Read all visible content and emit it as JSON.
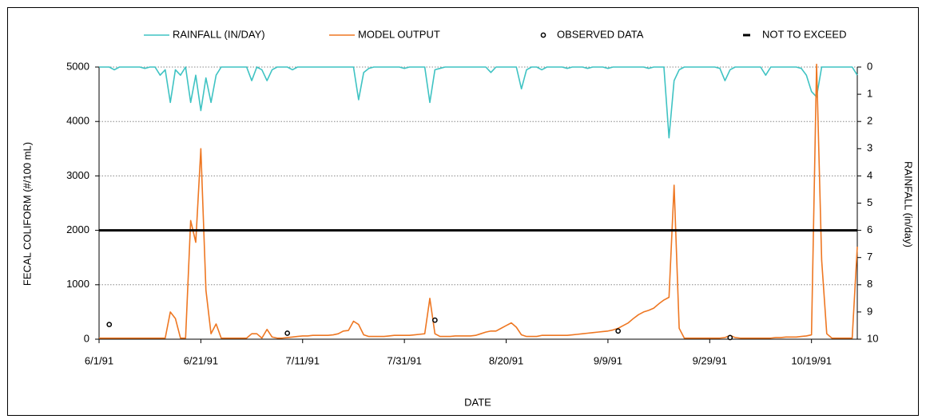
{
  "chart_data": {
    "type": "line",
    "xlabel": "DATE",
    "ylabel": "FECAL COLIFORM (#/100 mL)",
    "y2label": "RAINFALL (in/day)",
    "x": [
      "6/1/91",
      "6/2/91",
      "6/3/91",
      "6/4/91",
      "6/5/91",
      "6/6/91",
      "6/7/91",
      "6/8/91",
      "6/9/91",
      "6/10/91",
      "6/11/91",
      "6/12/91",
      "6/13/91",
      "6/14/91",
      "6/15/91",
      "6/16/91",
      "6/17/91",
      "6/18/91",
      "6/19/91",
      "6/20/91",
      "6/21/91",
      "6/22/91",
      "6/23/91",
      "6/24/91",
      "6/25/91",
      "6/26/91",
      "6/27/91",
      "6/28/91",
      "6/29/91",
      "6/30/91",
      "7/1/91",
      "7/2/91",
      "7/3/91",
      "7/4/91",
      "7/5/91",
      "7/6/91",
      "7/7/91",
      "7/8/91",
      "7/9/91",
      "7/10/91",
      "7/11/91",
      "7/12/91",
      "7/13/91",
      "7/14/91",
      "7/15/91",
      "7/16/91",
      "7/17/91",
      "7/18/91",
      "7/19/91",
      "7/20/91",
      "7/21/91",
      "7/22/91",
      "7/23/91",
      "7/24/91",
      "7/25/91",
      "7/26/91",
      "7/27/91",
      "7/28/91",
      "7/29/91",
      "7/30/91",
      "7/31/91",
      "8/1/91",
      "8/2/91",
      "8/3/91",
      "8/4/91",
      "8/5/91",
      "8/6/91",
      "8/7/91",
      "8/8/91",
      "8/9/91",
      "8/10/91",
      "8/11/91",
      "8/12/91",
      "8/13/91",
      "8/14/91",
      "8/15/91",
      "8/16/91",
      "8/17/91",
      "8/18/91",
      "8/19/91",
      "8/20/91",
      "8/21/91",
      "8/22/91",
      "8/23/91",
      "8/24/91",
      "8/25/91",
      "8/26/91",
      "8/27/91",
      "8/28/91",
      "8/29/91",
      "8/30/91",
      "8/31/91",
      "9/1/91",
      "9/2/91",
      "9/3/91",
      "9/4/91",
      "9/5/91",
      "9/6/91",
      "9/7/91",
      "9/8/91",
      "9/9/91",
      "9/10/91",
      "9/11/91",
      "9/12/91",
      "9/13/91",
      "9/14/91",
      "9/15/91",
      "9/16/91",
      "9/17/91",
      "9/18/91",
      "9/19/91",
      "9/20/91",
      "9/21/91",
      "9/22/91",
      "9/23/91",
      "9/24/91",
      "9/25/91",
      "9/26/91",
      "9/27/91",
      "9/28/91",
      "9/29/91",
      "9/30/91",
      "10/1/91",
      "10/2/91",
      "10/3/91",
      "10/4/91",
      "10/5/91",
      "10/6/91",
      "10/7/91",
      "10/8/91",
      "10/9/91",
      "10/10/91",
      "10/11/91",
      "10/12/91",
      "10/13/91",
      "10/14/91",
      "10/15/91",
      "10/16/91",
      "10/17/91",
      "10/18/91",
      "10/19/91",
      "10/20/91",
      "10/21/91",
      "10/22/91",
      "10/23/91",
      "10/24/91",
      "10/25/91",
      "10/26/91",
      "10/27/91",
      "10/28/91"
    ],
    "series": [
      {
        "name": "RAINFALL (IN/DAY)",
        "color": "#3fc3c3",
        "kind": "line",
        "axis": "y2",
        "values": [
          0,
          0,
          0,
          0.1,
          0,
          0,
          0,
          0,
          0,
          0.05,
          0,
          0,
          0.3,
          0.1,
          1.3,
          0.1,
          0.3,
          0,
          1.3,
          0.3,
          1.6,
          0.4,
          1.3,
          0.3,
          0,
          0,
          0,
          0,
          0,
          0,
          0.5,
          0,
          0.1,
          0.5,
          0.1,
          0,
          0,
          0,
          0.1,
          0,
          0,
          0,
          0,
          0,
          0,
          0,
          0,
          0,
          0,
          0,
          0,
          1.2,
          0.2,
          0.05,
          0,
          0,
          0,
          0,
          0,
          0,
          0.05,
          0,
          0,
          0,
          0,
          1.3,
          0.1,
          0.05,
          0,
          0,
          0,
          0,
          0,
          0,
          0,
          0,
          0,
          0.2,
          0,
          0,
          0,
          0,
          0,
          0.8,
          0.1,
          0,
          0,
          0.1,
          0,
          0,
          0,
          0,
          0.05,
          0,
          0,
          0,
          0.05,
          0,
          0,
          0,
          0.05,
          0,
          0,
          0,
          0,
          0,
          0,
          0,
          0.05,
          0,
          0,
          0,
          2.6,
          0.5,
          0.1,
          0,
          0,
          0,
          0,
          0,
          0,
          0,
          0.05,
          0.5,
          0.1,
          0,
          0,
          0,
          0,
          0,
          0,
          0.3,
          0,
          0,
          0,
          0,
          0,
          0,
          0.05,
          0.3,
          0.9,
          1.1,
          0,
          0,
          0,
          0,
          0,
          0,
          0,
          0.3
        ]
      },
      {
        "name": "MODEL OUTPUT",
        "color": "#ee7722",
        "kind": "line",
        "values": [
          20,
          20,
          20,
          20,
          20,
          20,
          20,
          20,
          20,
          20,
          20,
          20,
          20,
          20,
          500,
          380,
          20,
          20,
          2180,
          1780,
          3500,
          900,
          100,
          280,
          20,
          20,
          20,
          20,
          20,
          20,
          100,
          100,
          20,
          180,
          40,
          20,
          20,
          30,
          40,
          50,
          60,
          60,
          70,
          70,
          70,
          70,
          80,
          100,
          150,
          160,
          330,
          270,
          80,
          50,
          50,
          50,
          50,
          60,
          70,
          70,
          70,
          70,
          80,
          90,
          100,
          750,
          100,
          50,
          50,
          50,
          60,
          60,
          60,
          60,
          70,
          100,
          130,
          150,
          150,
          200,
          250,
          300,
          220,
          80,
          50,
          50,
          50,
          70,
          70,
          70,
          70,
          70,
          70,
          80,
          90,
          100,
          110,
          120,
          130,
          140,
          150,
          170,
          200,
          250,
          300,
          380,
          450,
          500,
          530,
          570,
          650,
          720,
          770,
          2830,
          200,
          20,
          20,
          20,
          20,
          20,
          20,
          20,
          20,
          30,
          70,
          30,
          20,
          20,
          20,
          20,
          20,
          20,
          20,
          30,
          30,
          40,
          40,
          40,
          50,
          60,
          80,
          5050,
          1450,
          100,
          20,
          20,
          20,
          20,
          20,
          1700
        ]
      },
      {
        "name": "OBSERVED DATA",
        "color": "#000000",
        "kind": "scatter",
        "x": [
          "6/3/91",
          "7/8/91",
          "8/6/91",
          "9/11/91",
          "10/3/91"
        ],
        "values": [
          270,
          110,
          350,
          150,
          30
        ]
      },
      {
        "name": "NOT TO EXCEED",
        "color": "#000000",
        "kind": "limit",
        "x": [
          "6/1/91",
          "10/28/91"
        ],
        "values": [
          2000,
          2000
        ]
      }
    ],
    "xlim": [
      "6/1/91",
      "10/28/91"
    ],
    "xticks": [
      "6/1/91",
      "6/21/91",
      "7/11/91",
      "7/31/91",
      "8/20/91",
      "9/9/91",
      "9/29/91",
      "10/19/91"
    ],
    "ylim": [
      0,
      5000
    ],
    "yticks": [
      0,
      1000,
      2000,
      3000,
      4000,
      5000
    ],
    "y2lim": [
      0,
      10
    ],
    "y2ticks": [
      0,
      1,
      2,
      3,
      4,
      5,
      6,
      7,
      8,
      9,
      10
    ],
    "y2_inverted": true,
    "grid": true,
    "legend": "top"
  }
}
